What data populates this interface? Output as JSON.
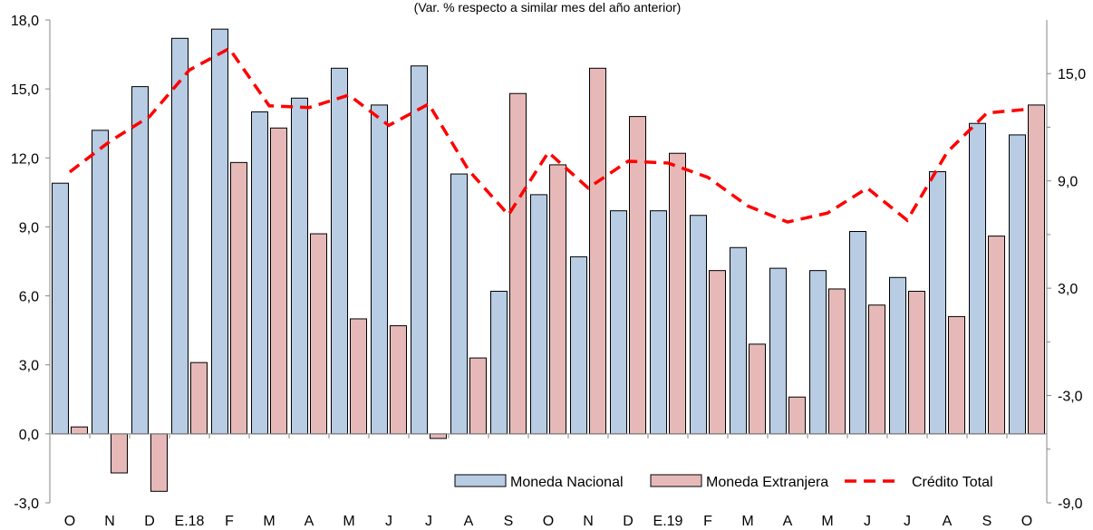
{
  "chart_data": {
    "type": "bar",
    "subtitle": "(Var. % respecto a similar mes del año anterior)",
    "categories": [
      "O",
      "N",
      "D",
      "E.18",
      "F",
      "M",
      "A",
      "M",
      "J",
      "J",
      "A",
      "S",
      "O",
      "N",
      "D",
      "E.19",
      "F",
      "M",
      "A",
      "M",
      "J",
      "J",
      "A",
      "S",
      "O"
    ],
    "series": [
      {
        "name": "Moneda Nacional",
        "type": "bar",
        "axis": "left",
        "color": "#b8cce4",
        "values": [
          10.9,
          13.2,
          15.1,
          17.2,
          17.6,
          14.0,
          14.6,
          15.9,
          14.3,
          16.0,
          11.3,
          6.2,
          10.4,
          7.7,
          9.7,
          9.7,
          9.5,
          8.1,
          7.2,
          7.1,
          8.8,
          6.8,
          11.4,
          13.5,
          13.0
        ]
      },
      {
        "name": "Moneda Extranjera",
        "type": "bar",
        "axis": "left",
        "color": "#e6b9b8",
        "values": [
          0.3,
          -1.7,
          -2.5,
          3.1,
          11.8,
          13.3,
          8.7,
          5.0,
          4.7,
          -0.2,
          3.3,
          14.8,
          11.7,
          15.9,
          13.8,
          12.2,
          7.1,
          3.9,
          1.6,
          6.3,
          5.6,
          6.2,
          5.1,
          8.6,
          14.3
        ]
      },
      {
        "name": "Crédito Total",
        "type": "line",
        "axis": "right",
        "color": "#ff0000",
        "values": [
          9.5,
          11.2,
          12.6,
          15.2,
          16.4,
          13.2,
          13.1,
          13.8,
          12.1,
          13.3,
          9.6,
          7.1,
          10.6,
          8.6,
          10.1,
          10.0,
          9.2,
          7.6,
          6.7,
          7.2,
          8.6,
          6.8,
          10.6,
          12.8,
          13.0
        ]
      }
    ],
    "y_left": {
      "min": -3,
      "max": 18,
      "ticks": [
        "-3,0",
        "0,0",
        "3,0",
        "6,0",
        "9,0",
        "12,0",
        "15,0",
        "18,0"
      ]
    },
    "y_right": {
      "min": -9,
      "max": 18,
      "ticks": [
        "-9,0",
        "-3,0",
        "3,0",
        "9,0",
        "15,0"
      ]
    },
    "grid": false,
    "legend": {
      "position": "bottom-right",
      "items": [
        "Moneda Nacional",
        "Moneda Extranjera",
        "Crédito Total"
      ]
    }
  }
}
